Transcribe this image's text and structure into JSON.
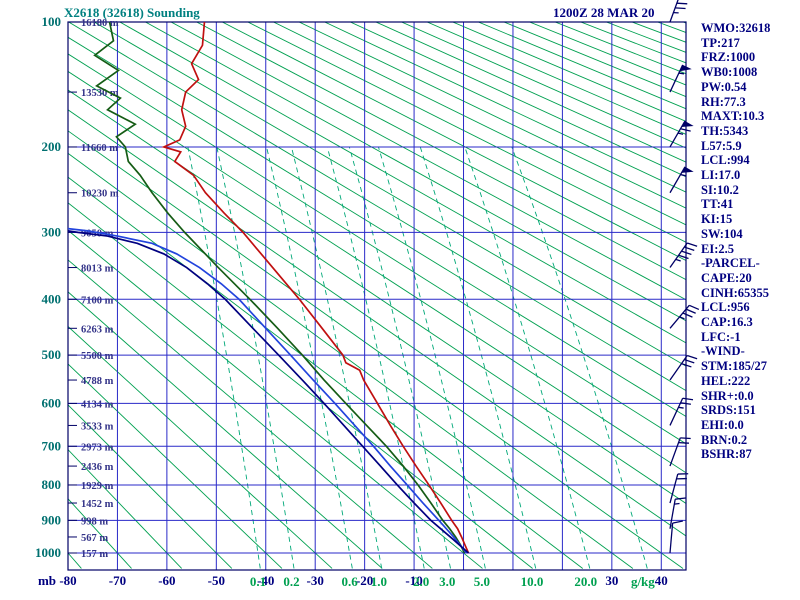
{
  "header": {
    "title": "X2618 (32618) Sounding",
    "datetime": "1200Z 28 MAR 20"
  },
  "stats": {
    "items": [
      "WMO:32618",
      "TP:217",
      "FRZ:1000",
      "WB0:1008",
      "PW:0.54",
      "RH:77.3",
      "MAXT:10.3",
      "TH:5343",
      "L57:5.9",
      "LCL:994",
      "LI:17.0",
      "SI:10.2",
      "TT:41",
      "KI:15",
      "SW:104",
      "EI:2.5",
      "-PARCEL-",
      "CAPE:20",
      "CINH:65355",
      "LCL:956",
      "CAP:16.3",
      "LFC:-1",
      "-WIND-",
      "STM:185/27",
      "HEL:222",
      "SHR+:0.0",
      "SRDS:151",
      "EHI:0.0",
      "BRN:0.2",
      "BSHR:87"
    ]
  },
  "chart_data": {
    "type": "line",
    "title": "X2618 (32618) Sounding",
    "subtitle": "1200Z 28 MAR 20",
    "diagram": "stuve-sounding",
    "x_axis": {
      "unit": "degC",
      "range": [
        -80,
        45
      ],
      "tick_labels": [
        -80,
        -70,
        -60,
        -50,
        -40,
        -30,
        -20,
        -10,
        30,
        40
      ],
      "left_label": "mb",
      "right_unit_label": "g/kg"
    },
    "y_axis": {
      "unit": "mb",
      "scale": "pressure-kappa",
      "ticks": [
        100,
        200,
        300,
        400,
        500,
        600,
        700,
        800,
        900,
        1000
      ],
      "range": [
        100,
        1050
      ]
    },
    "height_labels": [
      {
        "p": 100,
        "label": "16180 m"
      },
      {
        "p": 150,
        "label": "13530 m"
      },
      {
        "p": 200,
        "label": "11660 m"
      },
      {
        "p": 250,
        "label": "10230 m"
      },
      {
        "p": 300,
        "label": "9050 m"
      },
      {
        "p": 350,
        "label": "8013 m"
      },
      {
        "p": 400,
        "label": "7100 m"
      },
      {
        "p": 450,
        "label": "6263 m"
      },
      {
        "p": 500,
        "label": "5500 m"
      },
      {
        "p": 550,
        "label": "4788 m"
      },
      {
        "p": 600,
        "label": "4134 m"
      },
      {
        "p": 650,
        "label": "3533 m"
      },
      {
        "p": 700,
        "label": "2973 m"
      },
      {
        "p": 750,
        "label": "2436 m"
      },
      {
        "p": 800,
        "label": "1929 m"
      },
      {
        "p": 850,
        "label": "1452 m"
      },
      {
        "p": 900,
        "label": "998 m"
      },
      {
        "p": 950,
        "label": "567 m"
      },
      {
        "p": 1000,
        "label": "157 m"
      }
    ],
    "dry_adiabats": {
      "theta_start": -80,
      "theta_end": 350,
      "step": 10
    },
    "isotherms": {
      "start": -80,
      "end": 40,
      "step": 10
    },
    "mixing_ratio": {
      "values": [
        0.1,
        0.2,
        0.6,
        1,
        2,
        3,
        5,
        10,
        20,
        40
      ],
      "labels": [
        "0.1",
        "0.2",
        "0.6",
        "1.0",
        "2.0",
        "3.0",
        "5.0",
        "10.0",
        "20.0"
      ]
    },
    "series": [
      {
        "name": "temperature",
        "color": "#c01010",
        "points": [
          [
            1000,
            1
          ],
          [
            975,
            0.3
          ],
          [
            950,
            -0.4
          ],
          [
            925,
            -1.2
          ],
          [
            900,
            -2.4
          ],
          [
            850,
            -4.6
          ],
          [
            800,
            -7
          ],
          [
            750,
            -9.6
          ],
          [
            700,
            -12.2
          ],
          [
            650,
            -14.8
          ],
          [
            600,
            -17.4
          ],
          [
            550,
            -20.2
          ],
          [
            530,
            -21
          ],
          [
            515,
            -23.8
          ],
          [
            500,
            -24.4
          ],
          [
            450,
            -28.6
          ],
          [
            400,
            -33.2
          ],
          [
            350,
            -38.6
          ],
          [
            300,
            -44.6
          ],
          [
            275,
            -48.4
          ],
          [
            250,
            -52.2
          ],
          [
            230,
            -54.6
          ],
          [
            215,
            -58.4
          ],
          [
            205,
            -57.2
          ],
          [
            200,
            -60.6
          ],
          [
            193,
            -57.4
          ],
          [
            180,
            -56.2
          ],
          [
            165,
            -57
          ],
          [
            150,
            -56.2
          ],
          [
            140,
            -53.6
          ],
          [
            128,
            -55
          ],
          [
            115,
            -52.8
          ],
          [
            100,
            -52.4
          ]
        ]
      },
      {
        "name": "dewpoint",
        "color": "#155c15",
        "points": [
          [
            1000,
            0.2
          ],
          [
            975,
            -0.6
          ],
          [
            950,
            -1.6
          ],
          [
            925,
            -2.8
          ],
          [
            900,
            -4.2
          ],
          [
            850,
            -6.6
          ],
          [
            800,
            -9.2
          ],
          [
            750,
            -12.2
          ],
          [
            700,
            -15.6
          ],
          [
            650,
            -19.6
          ],
          [
            600,
            -23.8
          ],
          [
            550,
            -28.2
          ],
          [
            500,
            -32.6
          ],
          [
            450,
            -37.6
          ],
          [
            400,
            -43.2
          ],
          [
            350,
            -49.6
          ],
          [
            300,
            -56.4
          ],
          [
            275,
            -59.8
          ],
          [
            250,
            -63
          ],
          [
            230,
            -65.4
          ],
          [
            215,
            -67.8
          ],
          [
            200,
            -68.4
          ],
          [
            190,
            -70.2
          ],
          [
            178,
            -66.4
          ],
          [
            165,
            -72
          ],
          [
            155,
            -69.4
          ],
          [
            145,
            -74.2
          ],
          [
            133,
            -69.8
          ],
          [
            122,
            -74.6
          ],
          [
            112,
            -70.8
          ],
          [
            100,
            -71.6
          ]
        ]
      },
      {
        "name": "wetbulb",
        "color": "#2244dd",
        "points": [
          [
            1000,
            0.6
          ],
          [
            950,
            -2
          ],
          [
            900,
            -5
          ],
          [
            850,
            -8.2
          ],
          [
            800,
            -11.4
          ],
          [
            750,
            -14.8
          ],
          [
            700,
            -18.2
          ],
          [
            650,
            -22
          ],
          [
            600,
            -26
          ],
          [
            550,
            -30.4
          ],
          [
            500,
            -35
          ],
          [
            450,
            -40
          ],
          [
            400,
            -45.4
          ],
          [
            375,
            -49
          ],
          [
            350,
            -53.4
          ],
          [
            330,
            -58
          ],
          [
            315,
            -63
          ],
          [
            305,
            -70
          ],
          [
            298,
            -76
          ],
          [
            295,
            -80
          ]
        ]
      },
      {
        "name": "parcel",
        "color": "#000080",
        "points": [
          [
            1000,
            1
          ],
          [
            956,
            -2.2
          ],
          [
            900,
            -6.6
          ],
          [
            850,
            -10
          ],
          [
            800,
            -13.4
          ],
          [
            750,
            -16.8
          ],
          [
            700,
            -20.4
          ],
          [
            650,
            -24.2
          ],
          [
            600,
            -28.2
          ],
          [
            550,
            -32.6
          ],
          [
            500,
            -37.4
          ],
          [
            450,
            -42.6
          ],
          [
            400,
            -48.2
          ],
          [
            375,
            -51.8
          ],
          [
            350,
            -56
          ],
          [
            330,
            -60.6
          ],
          [
            315,
            -66
          ],
          [
            305,
            -72
          ],
          [
            300,
            -78
          ],
          [
            298,
            -80
          ]
        ]
      }
    ],
    "wind_barbs": [
      {
        "p": 100,
        "dir": 200,
        "spd": 45
      },
      {
        "p": 150,
        "dir": 205,
        "spd": 55
      },
      {
        "p": 200,
        "dir": 210,
        "spd": 65
      },
      {
        "p": 250,
        "dir": 210,
        "spd": 55
      },
      {
        "p": 350,
        "dir": 215,
        "spd": 45
      },
      {
        "p": 450,
        "dir": 220,
        "spd": 35
      },
      {
        "p": 550,
        "dir": 215,
        "spd": 30
      },
      {
        "p": 650,
        "dir": 205,
        "spd": 25
      },
      {
        "p": 750,
        "dir": 200,
        "spd": 20
      },
      {
        "p": 850,
        "dir": 195,
        "spd": 20
      },
      {
        "p": 925,
        "dir": 190,
        "spd": 15
      },
      {
        "p": 1000,
        "dir": 185,
        "spd": 10
      }
    ],
    "style": {
      "grid": "#2a2ac8",
      "frame": "#000066",
      "adiabat": "#00a050",
      "mixing": "#00a878",
      "pressure_label": "#007070",
      "temp_label": "#000080",
      "height_label": "#333388",
      "mixing_label": "#00a050",
      "barb": "#000066",
      "title": "#008080",
      "text": "#000080"
    }
  }
}
